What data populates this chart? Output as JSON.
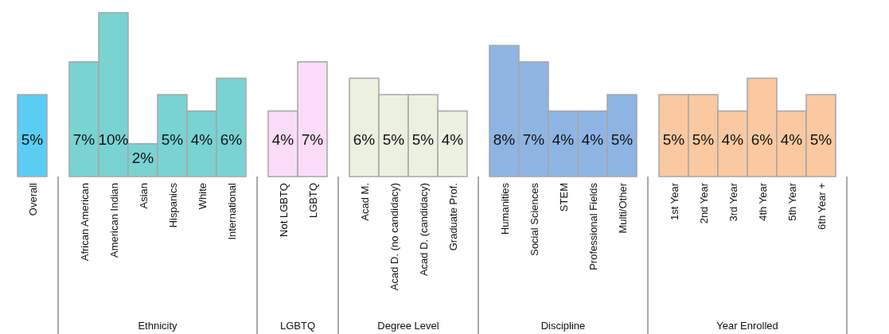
{
  "chart_data": [
    {
      "type": "bar",
      "categories": [
        "Overall"
      ],
      "values": [
        5
      ],
      "value_labels": [
        "5%"
      ],
      "colors": [
        "#5bcdf5"
      ]
    },
    {
      "type": "bar",
      "xlabel": "Ethnicity",
      "categories": [
        "African American",
        "American Indian",
        "Asian",
        "Hispanics",
        "White",
        "International"
      ],
      "values": [
        7,
        10,
        2,
        5,
        4,
        6
      ],
      "value_labels": [
        "7%",
        "10%",
        "2%",
        "5%",
        "4%",
        "6%"
      ],
      "colors": [
        "#79d3d3",
        "#79d3d3",
        "#79d3d3",
        "#79d3d3",
        "#79d3d3",
        "#79d3d3"
      ]
    },
    {
      "type": "bar",
      "xlabel": "LGBTQ",
      "categories": [
        "Not LGBTQ",
        "LGBTQ"
      ],
      "values": [
        4,
        7
      ],
      "value_labels": [
        "4%",
        "7%"
      ],
      "colors": [
        "#fadcf8",
        "#fadcf8"
      ]
    },
    {
      "type": "bar",
      "xlabel": "Degree Level",
      "categories": [
        "Acad M.",
        "Acad D. (no candidacy)",
        "Acad D. (candidacy)",
        "Graduate Prof."
      ],
      "values": [
        6,
        5,
        5,
        4
      ],
      "value_labels": [
        "6%",
        "5%",
        "5%",
        "4%"
      ],
      "colors": [
        "#ebf1de",
        "#ebf1de",
        "#ebf1de",
        "#ebf1de"
      ]
    },
    {
      "type": "bar",
      "xlabel": "Discipline",
      "categories": [
        "Humanities",
        "Social Sciences",
        "STEM",
        "Professional Fields",
        "Multi/Other"
      ],
      "values": [
        8,
        7,
        4,
        4,
        5
      ],
      "value_labels": [
        "8%",
        "7%",
        "4%",
        "4%",
        "5%"
      ],
      "colors": [
        "#8eb4e3",
        "#8eb4e3",
        "#8eb4e3",
        "#8eb4e3",
        "#8eb4e3"
      ]
    },
    {
      "type": "bar",
      "xlabel": "Year Enrolled",
      "categories": [
        "1st Year",
        "2nd Year",
        "3rd Year",
        "4th Year",
        "5th Year",
        "6th Year +"
      ],
      "values": [
        5,
        5,
        4,
        6,
        4,
        5
      ],
      "value_labels": [
        "5%",
        "5%",
        "4%",
        "6%",
        "4%",
        "5%"
      ],
      "colors": [
        "#fac9a1",
        "#fac9a1",
        "#fac9a1",
        "#fac9a1",
        "#fac9a1",
        "#fac9a1"
      ]
    }
  ]
}
